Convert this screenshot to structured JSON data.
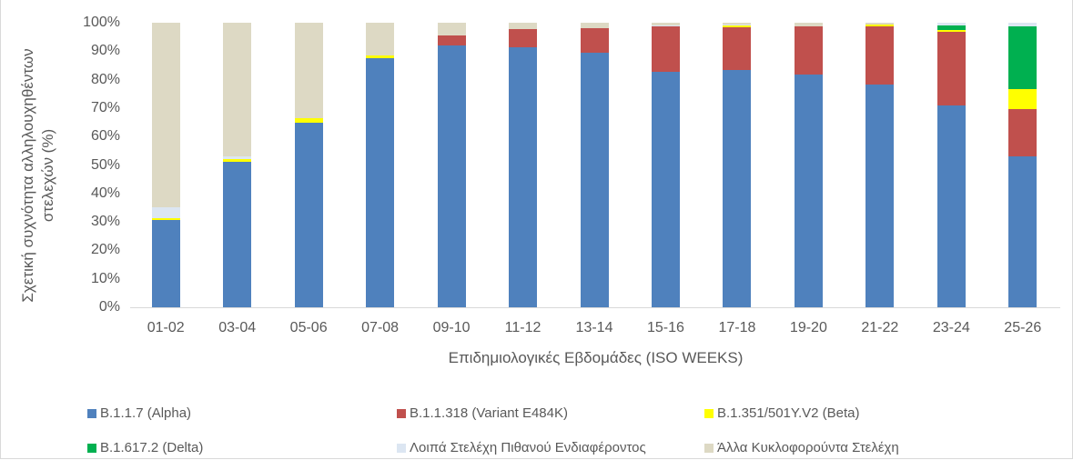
{
  "chart_data": {
    "type": "bar",
    "stacked": true,
    "normalized": true,
    "title": "",
    "xlabel": "Επιδημιολογικές Εβδομάδες (ISO WEEKS)",
    "ylabel": "Σχετική συχνότητα αλληλουχηθέντων στελεχών (%)",
    "ylim": [
      0,
      100
    ],
    "yticks": [
      "0%",
      "10%",
      "20%",
      "30%",
      "40%",
      "50%",
      "60%",
      "70%",
      "80%",
      "90%",
      "100%"
    ],
    "grid": false,
    "legend_position": "bottom",
    "categories": [
      "01-02",
      "03-04",
      "05-06",
      "07-08",
      "09-10",
      "11-12",
      "13-14",
      "15-16",
      "17-18",
      "19-20",
      "21-22",
      "23-24",
      "25-26"
    ],
    "series": [
      {
        "name": "B.1.1.7 (Alpha)",
        "color": "#4f81bd",
        "values": [
          30.7,
          51.0,
          65.0,
          87.5,
          92.0,
          91.4,
          89.5,
          82.7,
          83.4,
          81.8,
          78.3,
          71.0,
          53.0
        ]
      },
      {
        "name": "B.1.1.318 (Variant E484K)",
        "color": "#c0504d",
        "values": [
          0,
          0,
          0,
          0,
          3.5,
          6.4,
          8.5,
          16.0,
          15.0,
          17.0,
          20.5,
          25.8,
          16.6
        ]
      },
      {
        "name": "B.1.351/501Y.V2 (Beta)",
        "color": "#ffff00",
        "values": [
          0.5,
          1.0,
          1.5,
          1.0,
          0,
          0,
          0,
          0,
          0.5,
          0,
          0.5,
          0.7,
          7.0
        ]
      },
      {
        "name": "B.1.617.2 (Delta)",
        "color": "#00b050",
        "values": [
          0,
          0,
          0,
          0,
          0,
          0,
          0,
          0,
          0,
          0,
          0,
          1.7,
          22.1
        ]
      },
      {
        "name": "Λοιπά Στελέχη Πιθανού Ενδιαφέροντος",
        "color": "#dce6f2",
        "values": [
          4.0,
          1.0,
          0,
          0,
          0,
          0,
          0,
          0.3,
          0.6,
          0,
          0,
          0.8,
          1.3
        ]
      },
      {
        "name": "Άλλα Κυκλοφορούντα Στελέχη",
        "color": "#ddd9c4",
        "values": [
          64.8,
          47.0,
          33.5,
          11.5,
          4.5,
          2.2,
          2.0,
          1.0,
          0.5,
          1.2,
          0.7,
          0,
          0
        ]
      }
    ]
  }
}
